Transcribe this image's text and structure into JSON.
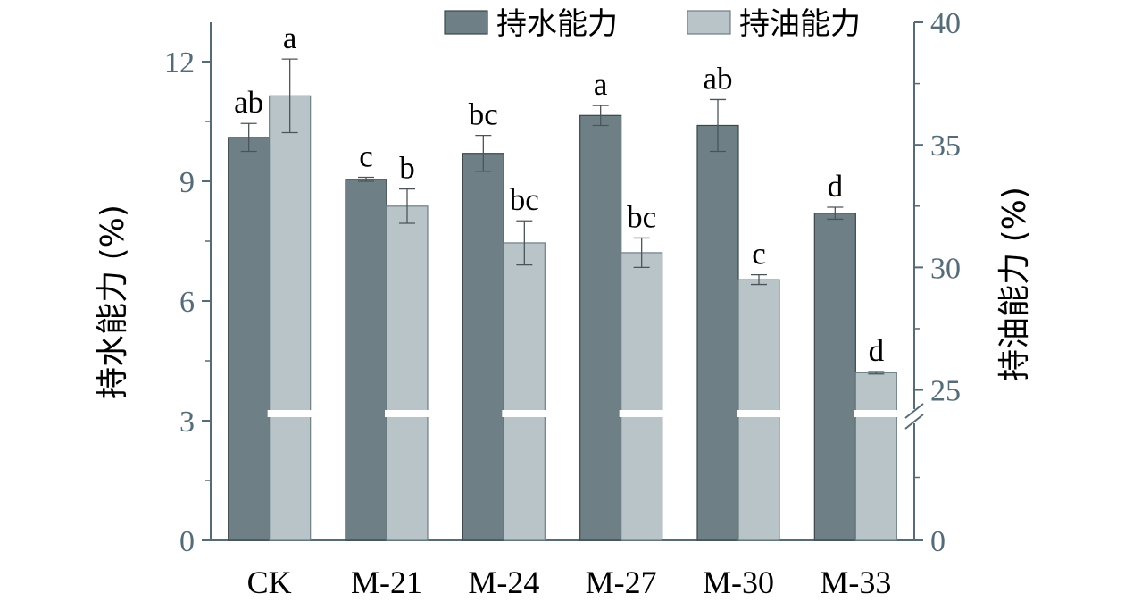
{
  "chart_data": {
    "type": "bar",
    "categories": [
      "CK",
      "M-21",
      "M-24",
      "M-27",
      "M-30",
      "M-33"
    ],
    "series": [
      {
        "name": "持水能力",
        "axis": "left",
        "color": "#6e7f86",
        "values": [
          10.1,
          9.05,
          9.7,
          10.65,
          10.4,
          8.2
        ],
        "errors": [
          0.35,
          0.05,
          0.45,
          0.25,
          0.65,
          0.15
        ],
        "labels": [
          "ab",
          "c",
          "bc",
          "a",
          "ab",
          "d"
        ]
      },
      {
        "name": "持油能力",
        "axis": "right",
        "color": "#b8c4c7",
        "values": [
          37.0,
          32.5,
          31.0,
          30.6,
          29.5,
          25.7
        ],
        "errors": [
          1.5,
          0.7,
          0.9,
          0.6,
          0.2,
          0.05
        ],
        "labels": [
          "a",
          "b",
          "bc",
          "bc",
          "c",
          "d"
        ]
      }
    ],
    "y_left": {
      "label": "持水能力 (%)",
      "ylim": [
        0,
        13
      ],
      "ticks": [
        "0",
        "3",
        "6",
        "9",
        "12"
      ]
    },
    "y_right": {
      "label": "持油能力 (%)",
      "broken": true,
      "break_at": 24,
      "segments": [
        [
          0,
          24
        ],
        [
          24,
          40
        ]
      ],
      "ticks": [
        "0",
        "25",
        "30",
        "35",
        "40"
      ],
      "tick_values": [
        0,
        25,
        30,
        35,
        40
      ]
    },
    "legend_position": "top",
    "grid": false,
    "axis_color": "#566b78"
  }
}
